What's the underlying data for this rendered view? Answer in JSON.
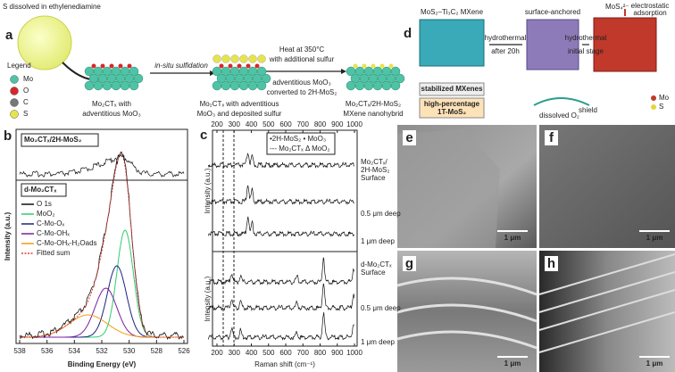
{
  "panel_a": {
    "label": "a",
    "top_text": "S dissolved in ethylenediamine",
    "legend_title": "Legend",
    "legend": [
      "Mo",
      "O",
      "C",
      "S"
    ],
    "step1": "in-situ sulfidation",
    "step2": [
      "Heat at 350°C",
      "with additional sulfur"
    ],
    "step2_note": [
      "adventitious MoO₃",
      "converted to 2H-MoS₂"
    ],
    "captions": [
      [
        "Mo₂CTₓ with",
        "adventitious MoO₃"
      ],
      [
        "Mo₂CTₓ with adventitious",
        "MoO₃ and deposited sulfur"
      ],
      [
        "Mo₂CTₓ/2H-MoS₂",
        "MXene nanohybrid"
      ]
    ]
  },
  "panel_d": {
    "label": "d",
    "left_title": "MoS₂–Ti₃C₂ MXene",
    "mid_title": "surface-anchored",
    "ion": "MoS₄²⁻",
    "right_title": [
      "electrostatic",
      "adsorption"
    ],
    "step_left": "hydrothermal",
    "step_left_note": "after 20h",
    "step_right": "hydrothermal",
    "step_right_note": "initial stage",
    "box_top": "stabilized MXenes",
    "box_bottom": [
      "high-percentage",
      "1T-MoS₂"
    ],
    "shield": "shield",
    "oxygen": "dissolved O₂",
    "legend": [
      "Mo",
      "S"
    ]
  },
  "panel_b": {
    "label": "b",
    "top_title": "Mo₂CTₓ/2H-MoS₂",
    "bottom_title": "d-Mo₂CTₓ",
    "legend": [
      "O 1s",
      "MoO₂",
      "C-Mo-Oₓ",
      "C-Mo-OHₓ",
      "C-Mo-OHₓ-H₂Oads",
      "Fitted sum"
    ],
    "y_label": "Intensity (a.u.)",
    "x_label": "Binding Energy (eV)",
    "xticks": [
      538,
      536,
      534,
      532,
      530,
      528,
      526
    ]
  },
  "panel_c": {
    "label": "c",
    "legend": [
      "•2H-MoS₂ • MoO₃",
      "--- Mo₂CTₓ Δ MoO₂"
    ],
    "y_label": "Intensity (a.u.)",
    "x_label": "Raman shift (cm⁻¹)",
    "xticks": [
      200,
      300,
      400,
      500,
      600,
      700,
      800,
      900,
      1000
    ],
    "right_labels": [
      [
        "Mo₂CTₓ/",
        "2H-MoS₂",
        "Surface"
      ],
      [
        "0.5 μm deep"
      ],
      [
        "1 μm deep"
      ],
      [
        "d-Mo₂CTₓ",
        "Surface"
      ],
      [
        "0.5 μm deep"
      ],
      [
        "1 μm deep"
      ]
    ]
  },
  "panels_sem": [
    {
      "label": "e",
      "scale": "1 μm"
    },
    {
      "label": "f",
      "scale": "1 μm"
    },
    {
      "label": "g",
      "scale": "1 μm"
    },
    {
      "label": "h",
      "scale": "1 μm"
    }
  ]
}
